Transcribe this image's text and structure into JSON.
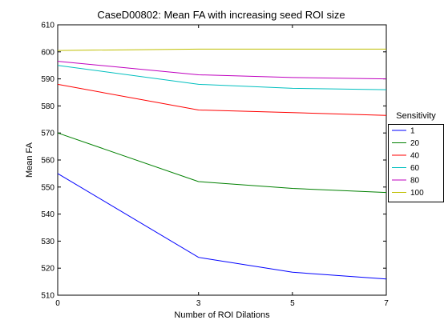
{
  "chart_data": {
    "type": "line",
    "title": "CaseD00802: Mean FA with increasing seed ROI size",
    "xlabel": "Number of ROI Dilations",
    "ylabel": "Mean FA",
    "xlim": [
      0,
      7
    ],
    "ylim": [
      510,
      610
    ],
    "xticks": [
      0,
      3,
      5,
      7
    ],
    "yticks": [
      510,
      520,
      530,
      540,
      550,
      560,
      570,
      580,
      590,
      600,
      610
    ],
    "grid": false,
    "x": [
      0,
      3,
      5,
      7
    ],
    "legend": {
      "title": "Sensitivity",
      "placement": "outside-right"
    },
    "series": [
      {
        "name": "1",
        "color": "#0000ff",
        "values": [
          555,
          524,
          518.5,
          516
        ]
      },
      {
        "name": "20",
        "color": "#008000",
        "values": [
          570,
          552,
          549.5,
          548
        ]
      },
      {
        "name": "40",
        "color": "#ff0000",
        "values": [
          588,
          578.5,
          577.5,
          576.5
        ]
      },
      {
        "name": "60",
        "color": "#00bfbf",
        "values": [
          595,
          588,
          586.5,
          586
        ]
      },
      {
        "name": "80",
        "color": "#bf00bf",
        "values": [
          596.5,
          591.5,
          590.5,
          590
        ]
      },
      {
        "name": "100",
        "color": "#bfbf00",
        "values": [
          600.5,
          601,
          601,
          601
        ]
      }
    ]
  }
}
